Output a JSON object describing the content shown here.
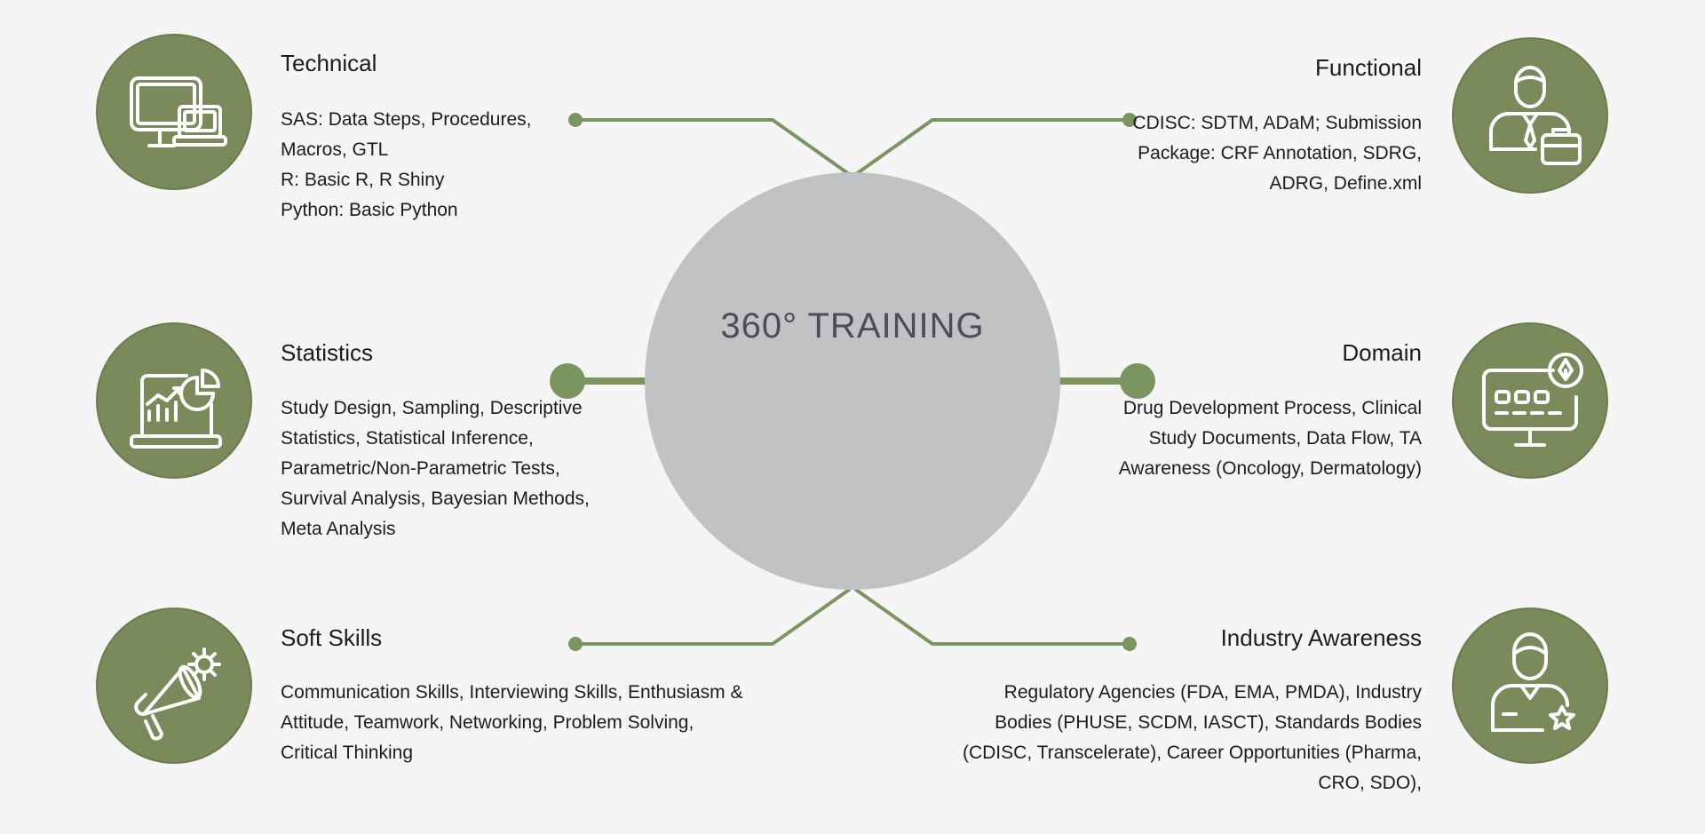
{
  "hub": {
    "title": "360° TRAINING"
  },
  "colors": {
    "accent": "#7a8a5a",
    "hub": "#c1c2c3",
    "connector": "#7a9560",
    "background": "#f5f5f5"
  },
  "sections": {
    "technical": {
      "icon": "computer-laptop-icon",
      "title": "Technical",
      "lines": [
        "SAS: Data Steps, Procedures,",
        "Macros, GTL",
        "R: Basic R, R Shiny",
        "Python: Basic Python"
      ]
    },
    "functional": {
      "icon": "businessman-briefcase-icon",
      "title": "Functional",
      "lines": [
        "CDISC: SDTM, ADaM; Submission",
        "Package: CRF Annotation, SDRG,",
        "ADRG, Define.xml"
      ]
    },
    "statistics": {
      "icon": "laptop-chart-icon",
      "title": "Statistics",
      "lines": [
        "Study Design, Sampling, Descriptive",
        "Statistics, Statistical Inference,",
        "Parametric/Non-Parametric Tests,",
        "Survival Analysis, Bayesian Methods,",
        "Meta Analysis"
      ]
    },
    "domain": {
      "icon": "monitor-pen-icon",
      "title": "Domain",
      "lines": [
        "Drug Development Process, Clinical",
        "Study Documents, Data Flow, TA",
        "Awareness (Oncology, Dermatology)"
      ]
    },
    "soft_skills": {
      "icon": "megaphone-gear-icon",
      "title": "Soft Skills",
      "lines": [
        "Communication Skills, Interviewing Skills, Enthusiasm &",
        "Attitude, Teamwork, Networking, Problem Solving,",
        "Critical Thinking"
      ]
    },
    "industry": {
      "icon": "person-star-icon",
      "title": "Industry Awareness",
      "lines": [
        "Regulatory Agencies (FDA, EMA, PMDA), Industry",
        "Bodies (PHUSE, SCDM, IASCT), Standards Bodies",
        "(CDISC, Transcelerate), Career Opportunities (Pharma,",
        "CRO, SDO),"
      ]
    }
  }
}
